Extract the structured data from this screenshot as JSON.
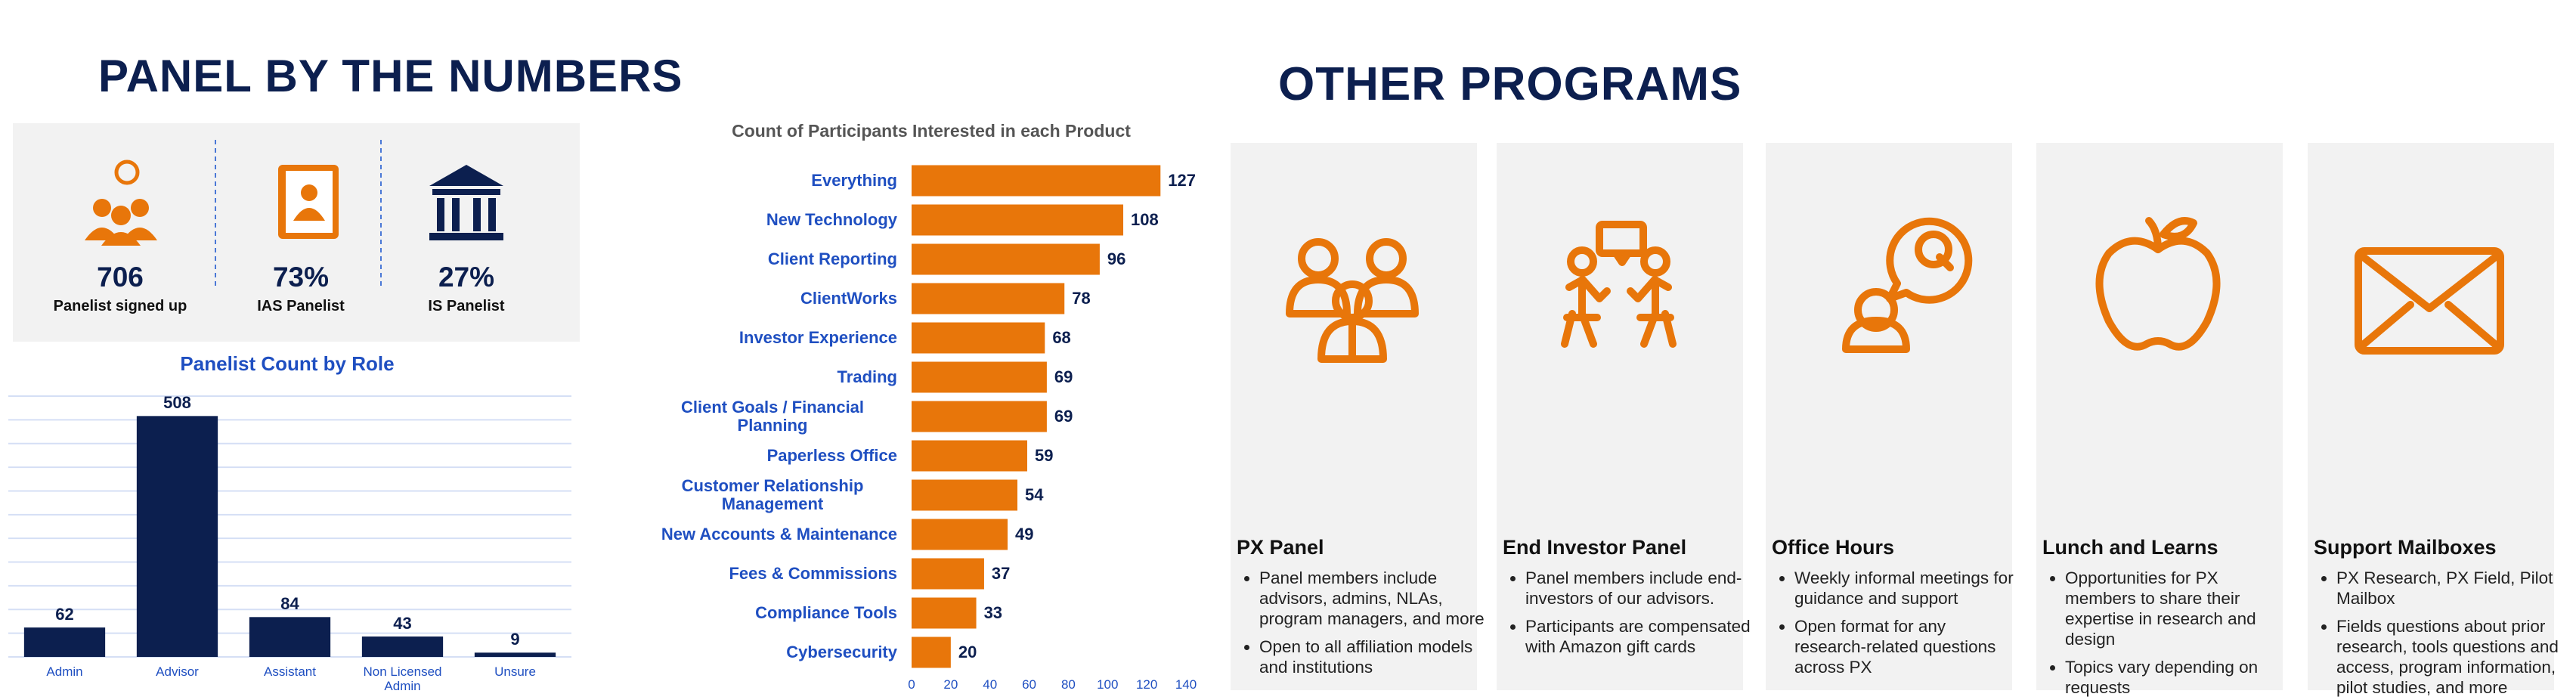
{
  "panel_title": "PANEL BY THE NUMBERS",
  "stats": [
    {
      "value": "706",
      "label": "Panelist signed up"
    },
    {
      "value": "73%",
      "label": "IAS Panelist"
    },
    {
      "value": "27%",
      "label": "IS Panelist"
    }
  ],
  "chart_data": [
    {
      "type": "bar",
      "title": "Panelist Count by Role",
      "categories": [
        "Admin",
        "Advisor",
        "Assistant",
        "Non Licensed Admin",
        "Unsure"
      ],
      "values": [
        62,
        508,
        84,
        43,
        9
      ],
      "color": "#0c1f4f",
      "ylim": [
        0,
        550
      ],
      "yticks": [
        0,
        50,
        100,
        150,
        200,
        250,
        300,
        350,
        400,
        450,
        500,
        550
      ],
      "grid": true
    },
    {
      "type": "barh",
      "title": "Count of Participants Interested in each Product",
      "categories": [
        "Everything",
        "New Technology",
        "Client Reporting",
        "ClientWorks",
        "Investor Experience",
        "Trading",
        "Client Goals / Financial Planning",
        "Paperless Office",
        "Customer Relationship Management",
        "New Accounts & Maintenance",
        "Fees & Commissions",
        "Compliance Tools",
        "Cybersecurity"
      ],
      "values": [
        127,
        108,
        96,
        78,
        68,
        69,
        69,
        59,
        54,
        49,
        37,
        33,
        20
      ],
      "color": "#e8760a",
      "xlim": [
        0,
        140
      ],
      "xticks": [
        0,
        20,
        40,
        60,
        80,
        100,
        120,
        140
      ],
      "grid": false
    }
  ],
  "programs_title": "OTHER PROGRAMS",
  "programs": [
    {
      "name": "PX Panel",
      "bullets": [
        "Panel members include advisors, admins, NLAs, program managers, and more",
        "Open to all affiliation models and institutions"
      ]
    },
    {
      "name": "End Investor Panel",
      "bullets": [
        "Panel members include end-investors of our advisors.",
        "Participants are compensated with Amazon gift cards"
      ]
    },
    {
      "name": "Office Hours",
      "bullets": [
        "Weekly informal meetings for guidance and support",
        "Open format for any research-related questions across PX"
      ]
    },
    {
      "name": "Lunch and Learns",
      "bullets": [
        "Opportunities for PX members to share their expertise in research and design",
        "Topics vary depending on requests"
      ]
    },
    {
      "name": "Support Mailboxes",
      "bullets": [
        "PX Research, PX Field, Pilot Mailbox",
        "Fields questions about prior research, tools questions and access, program information, pilot studies, and more"
      ]
    }
  ]
}
